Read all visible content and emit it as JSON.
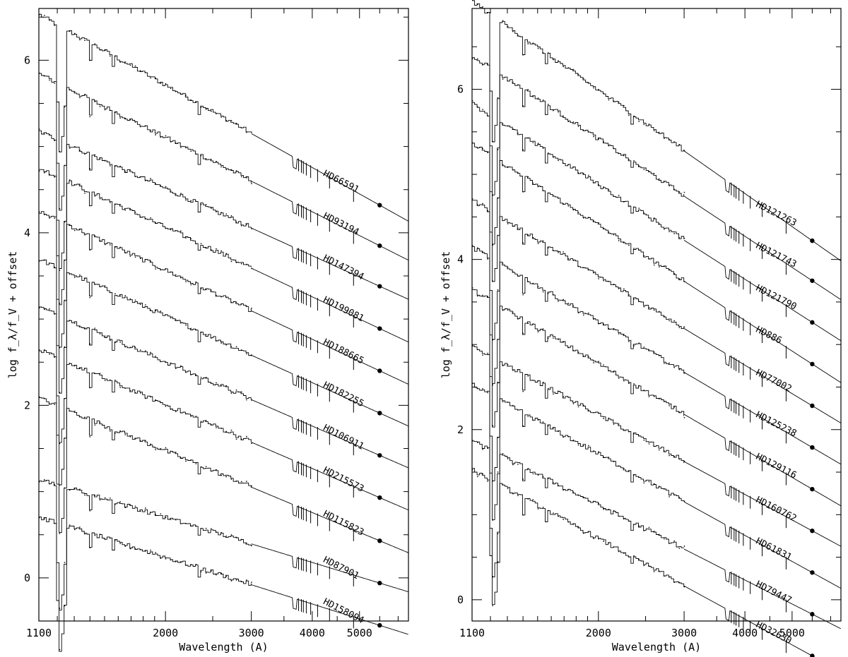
{
  "chart_data": [
    {
      "type": "line",
      "panel": "left",
      "xlabel": "Wavelength (A)",
      "ylabel": "log f_λ/f_V + offset",
      "x_scale": "log",
      "xlim": [
        1100,
        6300
      ],
      "ylim": [
        -0.5,
        6.6
      ],
      "x_ticks": [
        1100,
        2000,
        3000,
        4000,
        5000
      ],
      "y_ticks": [
        0,
        2,
        4,
        6
      ],
      "grid": false,
      "series": [
        {
          "name": "HD66591",
          "offset": 5.0,
          "start": 1.35,
          "end": -0.68
        },
        {
          "name": "HD93194",
          "offset": 4.5,
          "start": 1.18,
          "end": -0.65
        },
        {
          "name": "HD147394",
          "offset": 4.0,
          "start": 1.03,
          "end": -0.62
        },
        {
          "name": "HD199081",
          "offset": 3.5,
          "start": 1.1,
          "end": -0.61
        },
        {
          "name": "HD188665",
          "offset": 3.0,
          "start": 1.1,
          "end": -0.6
        },
        {
          "name": "HD182255",
          "offset": 2.5,
          "start": 1.05,
          "end": -0.59
        },
        {
          "name": "HD106911",
          "offset": 2.0,
          "start": 1.0,
          "end": -0.58
        },
        {
          "name": "HD215573",
          "offset": 1.5,
          "start": 1.0,
          "end": -0.57
        },
        {
          "name": "HD115823",
          "offset": 1.0,
          "start": 0.95,
          "end": -0.57
        },
        {
          "name": "HD87901",
          "offset": 0.5,
          "start": 0.55,
          "end": -0.56
        },
        {
          "name": "HD158094",
          "offset": 0.0,
          "start": 0.6,
          "end": -0.55
        }
      ]
    },
    {
      "type": "line",
      "panel": "right",
      "xlabel": "Wavelength (A)",
      "ylabel": "log f_λ/f_V + offset",
      "x_scale": "log",
      "xlim": [
        1100,
        6300
      ],
      "ylim": [
        -0.25,
        6.95
      ],
      "x_ticks": [
        1100,
        2000,
        3000,
        4000,
        5000
      ],
      "y_ticks": [
        0,
        2,
        4,
        6
      ],
      "grid": false,
      "series": [
        {
          "name": "HD121263",
          "offset": 5.0,
          "start": 1.8,
          "end": -0.78
        },
        {
          "name": "HD121743",
          "offset": 4.5,
          "start": 1.68,
          "end": -0.75
        },
        {
          "name": "HD121790",
          "offset": 4.0,
          "start": 1.62,
          "end": -0.74
        },
        {
          "name": "HD886",
          "offset": 3.5,
          "start": 1.65,
          "end": -0.73
        },
        {
          "name": "HD77002",
          "offset": 3.0,
          "start": 1.5,
          "end": -0.72
        },
        {
          "name": "HD125238",
          "offset": 2.5,
          "start": 1.45,
          "end": -0.71
        },
        {
          "name": "HD129116",
          "offset": 2.0,
          "start": 1.45,
          "end": -0.7
        },
        {
          "name": "HD160762",
          "offset": 1.5,
          "start": 1.3,
          "end": -0.69
        },
        {
          "name": "HD61831",
          "offset": 1.0,
          "start": 1.35,
          "end": -0.68
        },
        {
          "name": "HD79447",
          "offset": 0.5,
          "start": 1.2,
          "end": -0.67
        },
        {
          "name": "HD32630",
          "offset": 0.0,
          "start": 1.35,
          "end": -0.66
        }
      ]
    }
  ]
}
